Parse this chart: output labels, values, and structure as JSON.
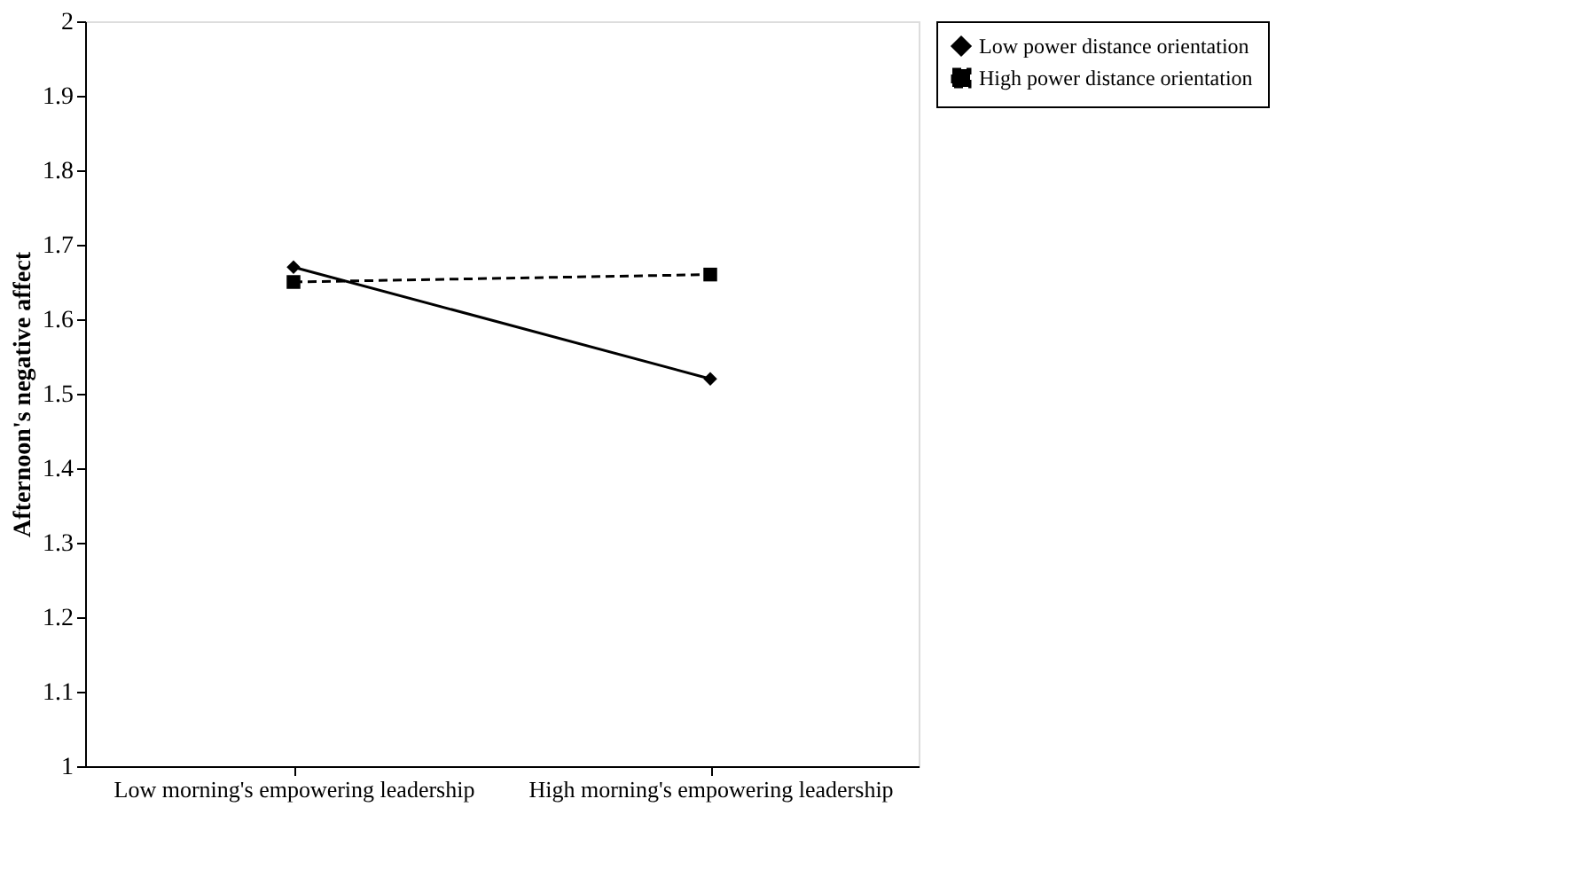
{
  "chart_data": {
    "type": "line",
    "ylabel": "Afternoon's negative affect",
    "categories": [
      "Low morning's empowering leadership",
      "High morning's empowering leadership"
    ],
    "ylim": [
      1,
      2
    ],
    "yticks": [
      1,
      1.1,
      1.2,
      1.3,
      1.4,
      1.5,
      1.6,
      1.7,
      1.8,
      1.9,
      2
    ],
    "grid": false,
    "legend": "right",
    "series": [
      {
        "name": "Low power distance orientation",
        "color": "#000000",
        "values": [
          1.67,
          1.52
        ],
        "marker": "diamond",
        "line_style": "solid"
      },
      {
        "name": "High power distance orientation",
        "color": "#000000",
        "values": [
          1.65,
          1.66
        ],
        "marker": "square",
        "line_style": "dashed"
      }
    ]
  }
}
